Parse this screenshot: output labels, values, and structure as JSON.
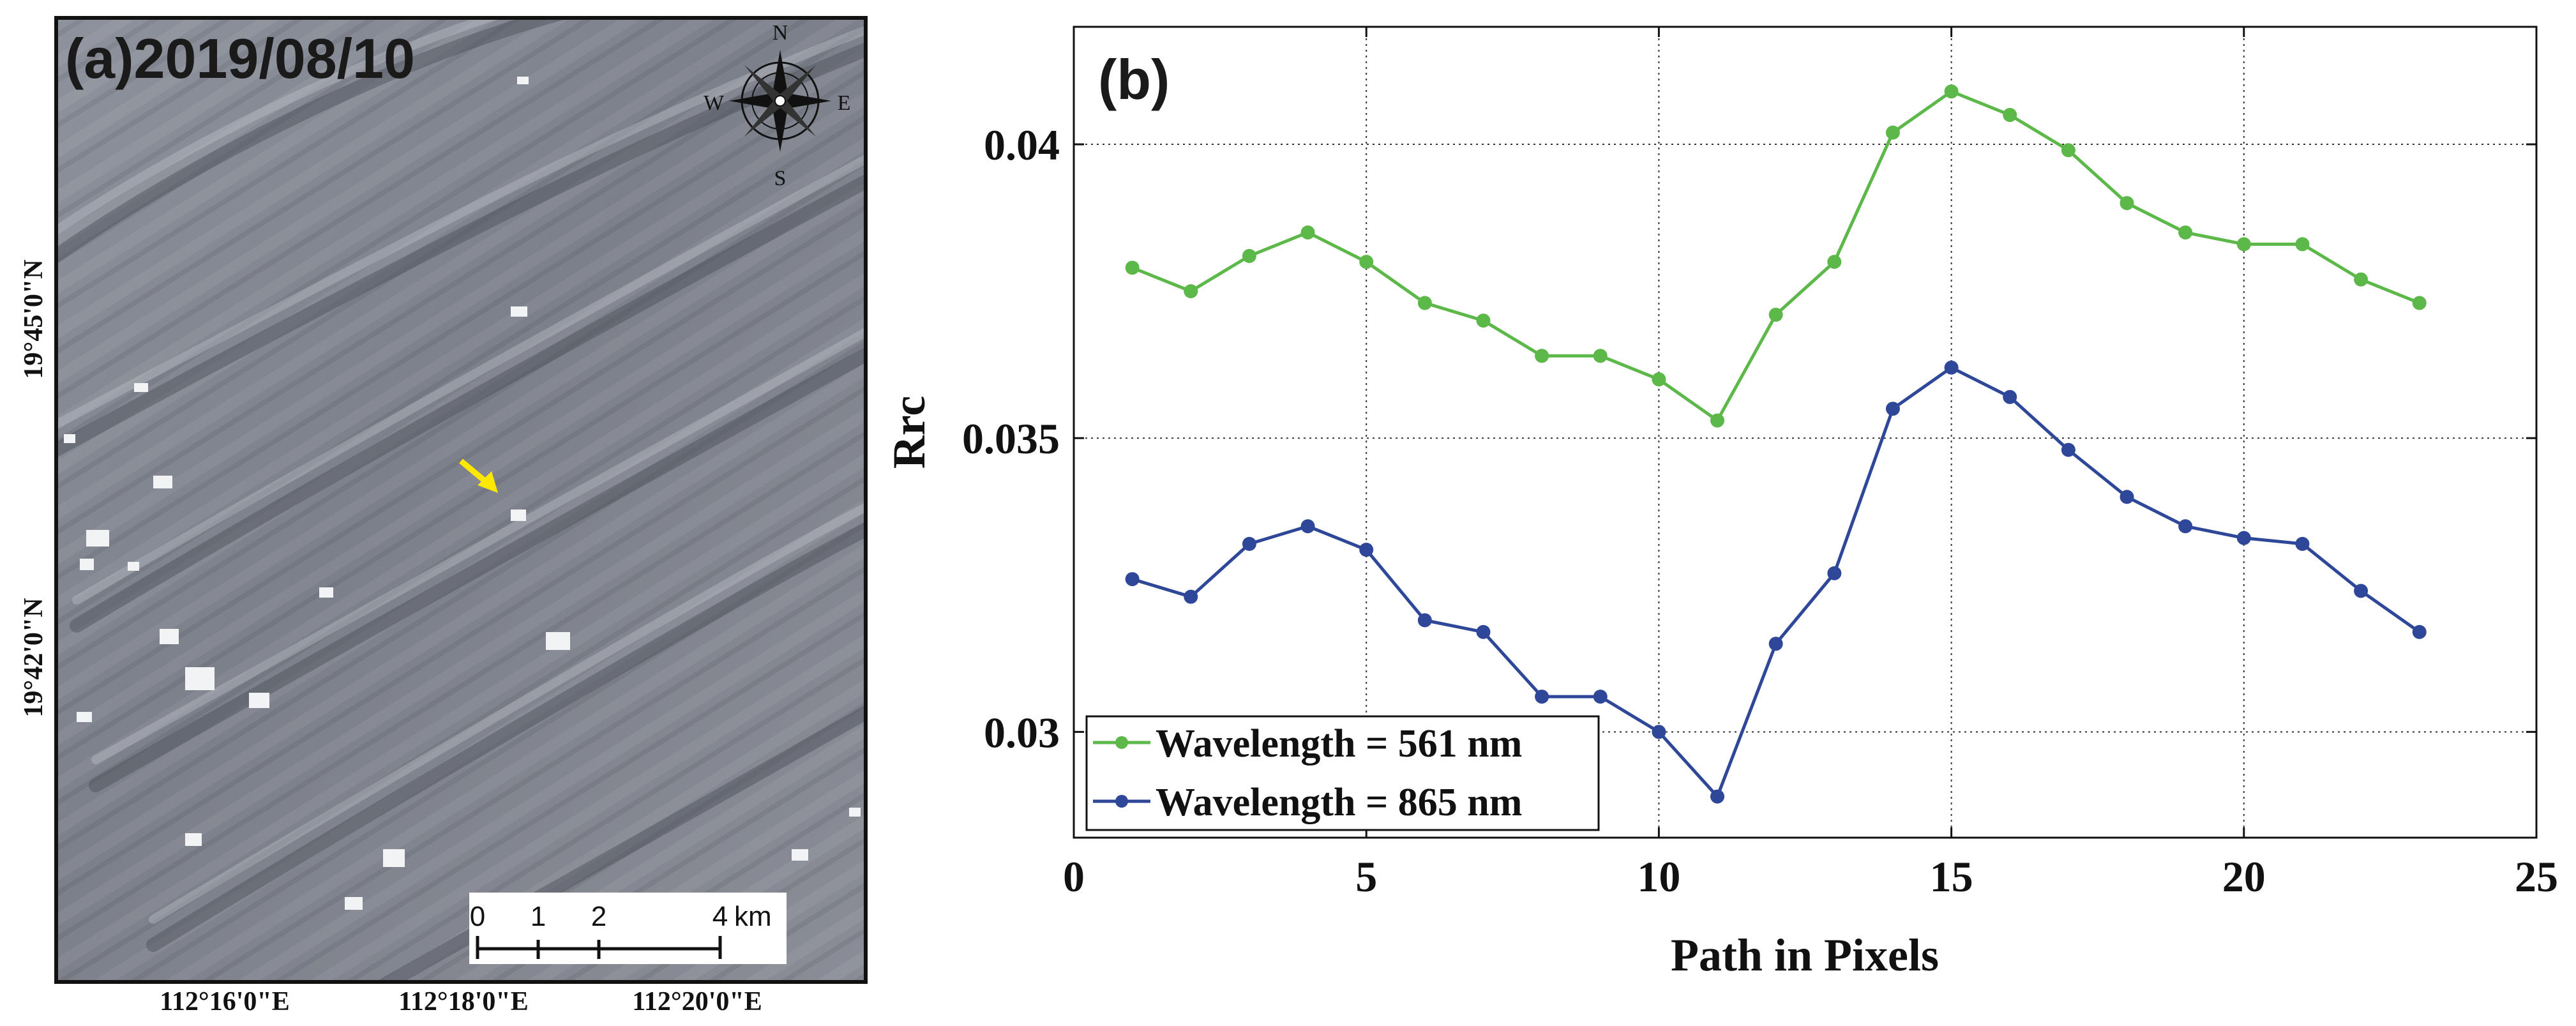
{
  "panel_a": {
    "label": "(a)2019/08/10",
    "compass": {
      "north": "N",
      "south": "S",
      "east": "E",
      "west": "W"
    },
    "lat_labels": [
      "19°45'0\"N",
      "19°42'0\"N"
    ],
    "lon_labels": [
      "112°16'0\"E",
      "112°18'0\"E",
      "112°20'0\"E"
    ],
    "scalebar": {
      "ticks": [
        "0",
        "1",
        "2",
        "4"
      ],
      "unit": "km"
    },
    "colors": {
      "sea_light": "#9ea3ae",
      "sea_dark": "#5d616b",
      "marker_arrow": "#ffe800"
    }
  },
  "chart_data": {
    "type": "line",
    "panel_label": "(b)",
    "xlabel": "Path in Pixels",
    "ylabel": "Rrc",
    "xlim": [
      0,
      25
    ],
    "ylim": [
      0.0282,
      0.042
    ],
    "xticks": [
      0,
      5,
      10,
      15,
      20,
      25
    ],
    "yticks": [
      0.03,
      0.035,
      0.04
    ],
    "xtick_labels": [
      "0",
      "5",
      "10",
      "15",
      "20",
      "25"
    ],
    "ytick_labels": [
      "0.03",
      "0.035",
      "0.04"
    ],
    "grid": true,
    "legend_position": "bottom-left",
    "x": [
      1,
      2,
      3,
      4,
      5,
      6,
      7,
      8,
      9,
      10,
      11,
      12,
      13,
      14,
      15,
      16,
      17,
      18,
      19,
      20,
      21,
      22,
      23
    ],
    "series": [
      {
        "name": "Wavelength = 561 nm",
        "color": "#5cb848",
        "values": [
          0.0379,
          0.0375,
          0.0381,
          0.0385,
          0.038,
          0.0373,
          0.037,
          0.0364,
          0.0364,
          0.036,
          0.0353,
          0.0371,
          0.038,
          0.0402,
          0.0409,
          0.0405,
          0.0399,
          0.039,
          0.0385,
          0.0383,
          0.0383,
          0.0377,
          0.0373
        ]
      },
      {
        "name": "Wavelength = 865 nm",
        "color": "#2e4799",
        "values": [
          0.0326,
          0.0323,
          0.0332,
          0.0335,
          0.0331,
          0.0319,
          0.0317,
          0.0306,
          0.0306,
          0.03,
          0.0289,
          0.0315,
          0.0327,
          0.0355,
          0.0362,
          0.0357,
          0.0348,
          0.034,
          0.0335,
          0.0333,
          0.0332,
          0.0324,
          0.0317
        ]
      }
    ]
  }
}
